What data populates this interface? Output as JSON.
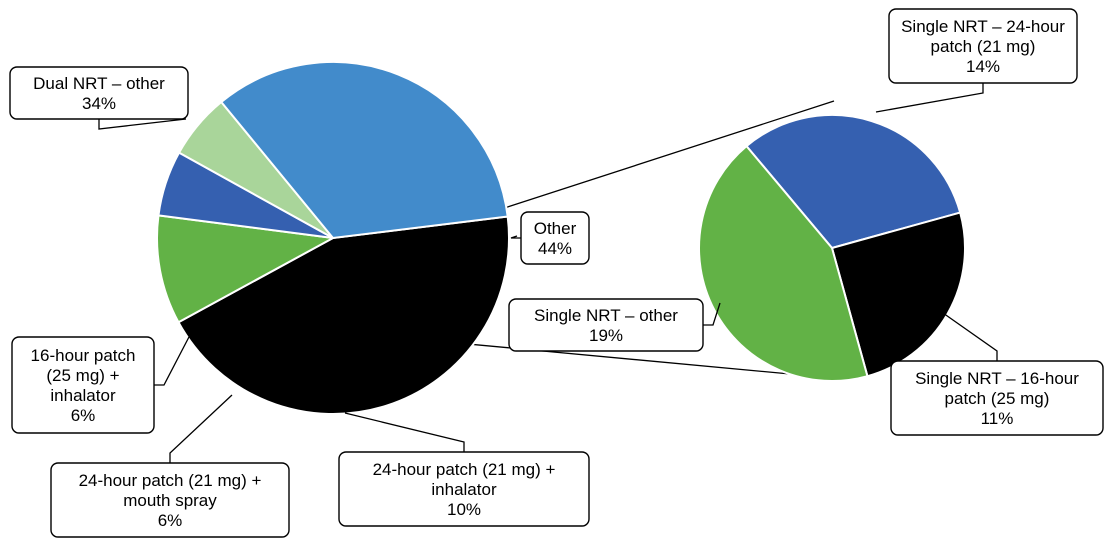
{
  "chart_data": [
    {
      "type": "pie",
      "title": "",
      "slices": [
        {
          "label": "Other",
          "value": 44,
          "display": "44%",
          "color": "#000000",
          "lines": [
            "Other",
            "44%"
          ]
        },
        {
          "label": "24-hour patch (21 mg) + inhalator",
          "value": 10,
          "display": "10%",
          "color": "#62b246",
          "lines": [
            "24-hour patch (21 mg) +",
            "inhalator",
            "10%"
          ]
        },
        {
          "label": "24-hour patch (21 mg) + mouth spray",
          "value": 6,
          "display": "6%",
          "color": "#3560b0",
          "lines": [
            "24-hour patch (21 mg) +",
            "mouth spray",
            "6%"
          ]
        },
        {
          "label": "16-hour patch (25 mg) + inhalator",
          "value": 6,
          "display": "6%",
          "color": "#a9d59a",
          "lines": [
            "16-hour patch",
            "(25 mg) +",
            "inhalator",
            "6%"
          ]
        },
        {
          "label": "Dual NRT – other",
          "value": 34,
          "display": "34%",
          "color": "#428bcb",
          "lines": [
            "Dual NRT – other",
            "34%"
          ]
        }
      ]
    },
    {
      "type": "pie",
      "title": "",
      "breakout_of": "Other",
      "slices": [
        {
          "label": "Single NRT – 24-hour patch (21 mg)",
          "value": 14,
          "display": "14%",
          "color": "#3560b0",
          "lines": [
            "Single NRT – 24-hour",
            "patch (21 mg)",
            "14%"
          ]
        },
        {
          "label": "Single NRT – 16-hour patch (25 mg)",
          "value": 11,
          "display": "11%",
          "color": "#000000",
          "lines": [
            "Single NRT – 16-hour",
            "patch (25 mg)",
            "11%"
          ]
        },
        {
          "label": "Single NRT – other",
          "value": 19,
          "display": "19%",
          "color": "#62b246",
          "lines": [
            "Single NRT – other",
            "19%"
          ]
        }
      ]
    }
  ]
}
